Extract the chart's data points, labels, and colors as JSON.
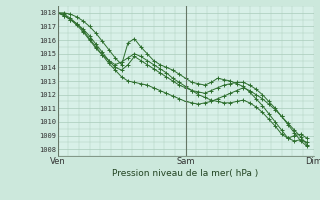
{
  "title": "Pression niveau de la mer( hPa )",
  "bg_color": "#cce8dc",
  "plot_bg_color": "#d8f0e8",
  "grid_color": "#aaccbb",
  "line_color": "#2d6e2d",
  "ylim": [
    1007.5,
    1018.5
  ],
  "yticks": [
    1008,
    1009,
    1010,
    1011,
    1012,
    1013,
    1014,
    1015,
    1016,
    1017,
    1018
  ],
  "xlabel_ticks": [
    0,
    48,
    96
  ],
  "xlabel_labels": [
    "Ven",
    "Sam",
    "Dim"
  ],
  "xlim": [
    0,
    96
  ],
  "series": [
    [
      1018.0,
      1017.8,
      1017.5,
      1017.2,
      1016.8,
      1016.3,
      1015.7,
      1015.1,
      1014.5,
      1014.0,
      1013.8,
      1014.2,
      1014.8,
      1014.5,
      1014.2,
      1013.9,
      1013.6,
      1013.3,
      1013.0,
      1012.7,
      1012.5,
      1012.3,
      1012.2,
      1012.1,
      1012.3,
      1012.5,
      1012.7,
      1012.8,
      1012.9,
      1012.9,
      1012.7,
      1012.4,
      1012.0,
      1011.5,
      1011.0,
      1010.4,
      1009.8,
      1009.2,
      1008.6,
      1008.2
    ],
    [
      1018.0,
      1017.9,
      1017.6,
      1017.2,
      1016.7,
      1016.1,
      1015.5,
      1014.9,
      1014.3,
      1013.8,
      1013.3,
      1013.0,
      1012.9,
      1012.8,
      1012.7,
      1012.5,
      1012.3,
      1012.1,
      1011.9,
      1011.7,
      1011.5,
      1011.4,
      1011.3,
      1011.4,
      1011.5,
      1011.7,
      1011.9,
      1012.1,
      1012.3,
      1012.5,
      1012.3,
      1012.0,
      1011.7,
      1011.3,
      1010.9,
      1010.4,
      1009.9,
      1009.4,
      1008.9,
      1008.3
    ],
    [
      1018.0,
      1018.0,
      1017.9,
      1017.7,
      1017.4,
      1017.0,
      1016.5,
      1015.9,
      1015.3,
      1014.7,
      1014.2,
      1015.8,
      1016.1,
      1015.5,
      1015.0,
      1014.5,
      1014.2,
      1014.0,
      1013.8,
      1013.5,
      1013.2,
      1012.9,
      1012.8,
      1012.7,
      1012.9,
      1013.2,
      1013.1,
      1013.0,
      1012.8,
      1012.6,
      1012.2,
      1011.7,
      1011.2,
      1010.6,
      1010.0,
      1009.4,
      1008.8,
      1009.0,
      1009.1,
      1008.8
    ],
    [
      1018.0,
      1017.8,
      1017.5,
      1017.1,
      1016.6,
      1016.0,
      1015.4,
      1014.9,
      1014.5,
      1014.2,
      1014.4,
      1014.7,
      1015.0,
      1014.8,
      1014.5,
      1014.2,
      1013.9,
      1013.6,
      1013.2,
      1012.9,
      1012.6,
      1012.3,
      1012.0,
      1011.8,
      1011.6,
      1011.5,
      1011.4,
      1011.4,
      1011.5,
      1011.6,
      1011.4,
      1011.1,
      1010.7,
      1010.2,
      1009.7,
      1009.1,
      1008.8,
      1008.6,
      1008.7,
      1008.5
    ]
  ],
  "series_x": [
    0,
    2.4,
    4.8,
    7.2,
    9.6,
    12.0,
    14.4,
    16.8,
    19.2,
    21.6,
    24.0,
    26.4,
    28.8,
    31.2,
    33.6,
    36.0,
    38.4,
    40.8,
    43.2,
    45.6,
    48.0,
    50.4,
    52.8,
    55.2,
    57.6,
    60.0,
    62.4,
    64.8,
    67.2,
    69.6,
    72.0,
    74.4,
    76.8,
    79.2,
    81.6,
    84.0,
    86.4,
    88.8,
    91.2,
    93.6
  ]
}
